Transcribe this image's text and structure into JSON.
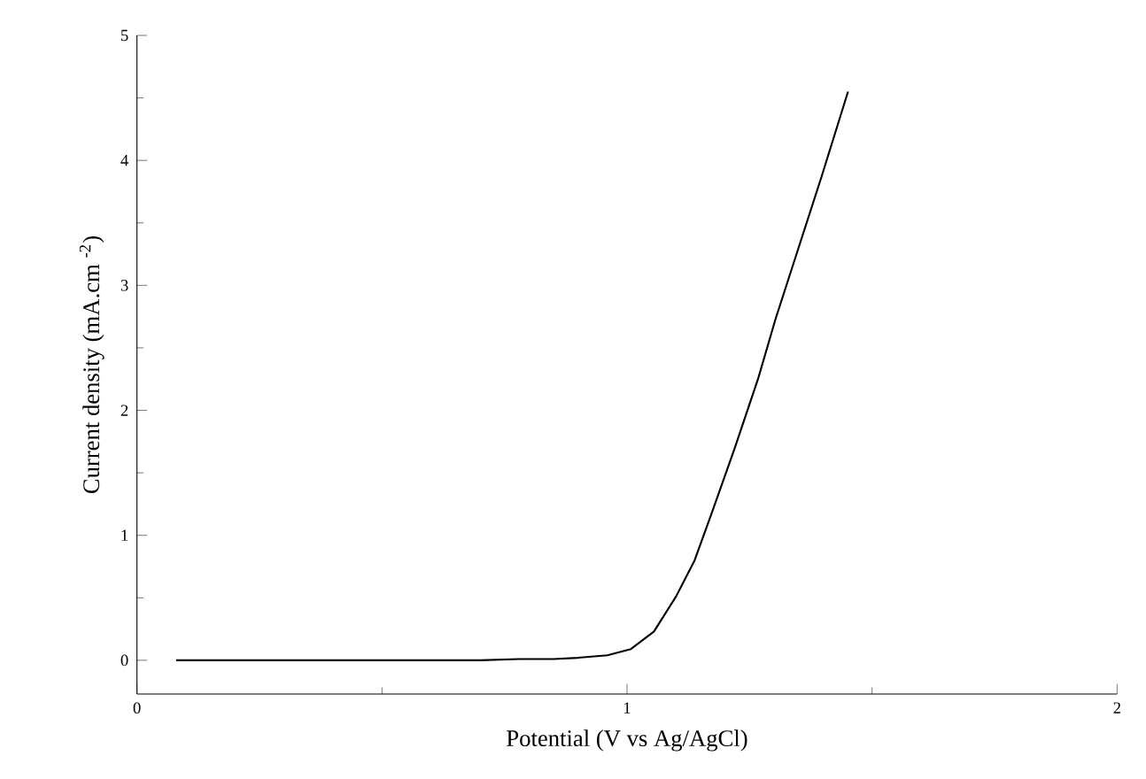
{
  "chart_data": {
    "type": "line",
    "xlabel": "Potential (V vs Ag/AgCl)",
    "ylabel": "Current density (mA.cm $^{-2}$)",
    "x": [
      0.08,
      0.3,
      0.5,
      0.7,
      0.78,
      0.85,
      0.9,
      0.96,
      1.008,
      1.055,
      1.1,
      1.138,
      1.173,
      1.22,
      1.268,
      1.303,
      1.35,
      1.397,
      1.451
    ],
    "series": [
      {
        "color": "#000000",
        "values": [
          0,
          0,
          0,
          0,
          0.01,
          0.01,
          0.02,
          0.04,
          0.09,
          0.23,
          0.51,
          0.8,
          1.18,
          1.7,
          2.26,
          2.73,
          3.3,
          3.87,
          4.55
        ]
      }
    ],
    "xlim": [
      0,
      2
    ],
    "ylim": [
      -0.27,
      5
    ],
    "xticks": [
      0,
      1,
      2
    ],
    "yticks": [
      0,
      1,
      2,
      3,
      4,
      5
    ],
    "grid": false,
    "legend": false,
    "marker": "none",
    "line_style": "solid"
  }
}
